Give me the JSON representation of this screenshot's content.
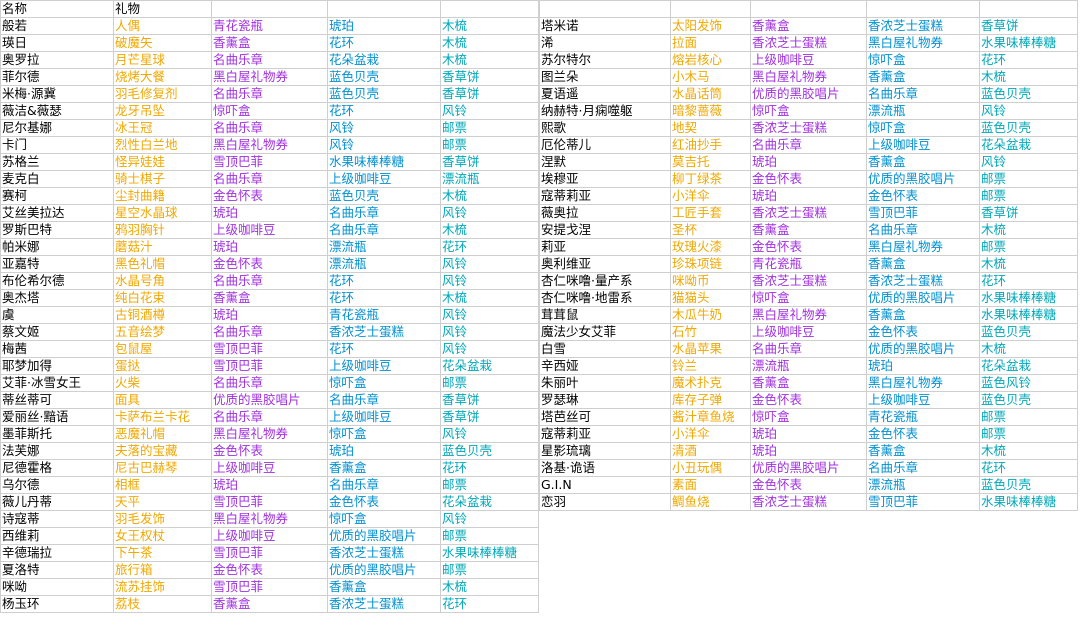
{
  "header": {
    "name": "名称",
    "gift": "礼物"
  },
  "left_rows": [
    [
      "般若",
      "人偶",
      "青花瓷瓶",
      "琥珀",
      "木梳"
    ],
    [
      "瑛日",
      "破魔矢",
      "香薰盒",
      "花环",
      "木梳"
    ],
    [
      "奥罗拉",
      "月芒星球",
      "名曲乐章",
      "花朵盆栽",
      "木梳"
    ],
    [
      "菲尔德",
      "烧烤大餐",
      "黑白屋礼物券",
      "蓝色贝壳",
      "香草饼"
    ],
    [
      "米梅·源冀",
      "羽毛修复剂",
      "名曲乐章",
      "蓝色贝壳",
      "香草饼"
    ],
    [
      "薇洁&薇瑟",
      "龙牙吊坠",
      "惊吓盒",
      "花环",
      "风铃"
    ],
    [
      "尼尔基娜",
      "冰王冠",
      "名曲乐章",
      "风铃",
      "邮票"
    ],
    [
      "卡门",
      "烈性白兰地",
      "黑白屋礼物券",
      "风铃",
      "邮票"
    ],
    [
      "苏格兰",
      "怪异娃娃",
      "雪顶巴菲",
      "水果味棒棒糖",
      "香草饼"
    ],
    [
      "麦克白",
      "骑士棋子",
      "名曲乐章",
      "上级咖啡豆",
      "漂流瓶"
    ],
    [
      "赛柯",
      "尘封曲籍",
      "金色怀表",
      "蓝色贝壳",
      "木梳"
    ],
    [
      "艾丝美拉达",
      "星空水晶球",
      "琥珀",
      "名曲乐章",
      "风铃"
    ],
    [
      "罗斯巴特",
      "鸦羽胸针",
      "上级咖啡豆",
      "名曲乐章",
      "木梳"
    ],
    [
      "帕米娜",
      "蘑菇汁",
      "琥珀",
      "漂流瓶",
      "花环"
    ],
    [
      "亚嘉特",
      "黑色礼帽",
      "金色怀表",
      "漂流瓶",
      "风铃"
    ],
    [
      "布伦希尔德",
      "水晶号角",
      "名曲乐章",
      "花环",
      "风铃"
    ],
    [
      "奥杰塔",
      "纯白花束",
      "香薰盒",
      "花环",
      "木梳"
    ],
    [
      "虞",
      "古铜酒樽",
      "琥珀",
      "青花瓷瓶",
      "风铃"
    ],
    [
      "蔡文姬",
      "五音绘梦",
      "名曲乐章",
      "香浓芝士蛋糕",
      "风铃"
    ],
    [
      "梅茜",
      "包鼠屋",
      "雪顶巴菲",
      "花环",
      "风铃"
    ],
    [
      "耶梦加得",
      "蛋挞",
      "雪顶巴菲",
      "上级咖啡豆",
      "花朵盆栽"
    ],
    [
      "艾菲·冰雪女王",
      "火柴",
      "名曲乐章",
      "惊吓盒",
      "邮票"
    ],
    [
      "蒂丝蒂可",
      "面具",
      "优质的黑胶唱片",
      "名曲乐章",
      "香草饼"
    ],
    [
      "爱丽丝·黯语",
      "卡萨布兰卡花",
      "名曲乐章",
      "上级咖啡豆",
      "香草饼"
    ],
    [
      "墨菲斯托",
      "恶魔礼帽",
      "黑白屋礼物券",
      "惊吓盒",
      "风铃"
    ],
    [
      "法芙娜",
      "夫落的宝藏",
      "金色怀表",
      "琥珀",
      "蓝色贝壳"
    ],
    [
      "尼德霍格",
      "尼古巴赫琴",
      "上级咖啡豆",
      "香薰盒",
      "花环"
    ],
    [
      "乌尔德",
      "相框",
      "琥珀",
      "名曲乐章",
      "邮票"
    ],
    [
      "薇儿丹蒂",
      "天平",
      "雪顶巴菲",
      "金色怀表",
      "花朵盆栽"
    ],
    [
      "诗寇蒂",
      "羽毛发饰",
      "黑白屋礼物券",
      "惊吓盒",
      "风铃"
    ],
    [
      "西维莉",
      "女王权杖",
      "上级咖啡豆",
      "优质的黑胶唱片",
      "邮票"
    ],
    [
      "辛德瑞拉",
      "下午茶",
      "雪顶巴菲",
      "香浓芝士蛋糕",
      "水果味棒棒糖"
    ],
    [
      "夏洛特",
      "旅行箱",
      "金色怀表",
      "优质的黑胶唱片",
      "邮票"
    ],
    [
      "咪呦",
      "流苏挂饰",
      "雪顶巴菲",
      "香薰盒",
      "木梳"
    ],
    [
      "杨玉环",
      "荔枝",
      "香薰盒",
      "香浓芝士蛋糕",
      "花环"
    ]
  ],
  "right_rows": [
    [
      "塔米诺",
      "太阳发饰",
      "香薰盒",
      "香浓芝士蛋糕",
      "香草饼"
    ],
    [
      "浠",
      "拉面",
      "香浓芝士蛋糕",
      "黑白屋礼物券",
      "水果味棒棒糖"
    ],
    [
      "苏尔特尔",
      "熔岩核心",
      "上级咖啡豆",
      "惊吓盒",
      "花环"
    ],
    [
      "图兰朵",
      "小木马",
      "黑白屋礼物券",
      "香薰盒",
      "木梳"
    ],
    [
      "夏语遥",
      "水晶话筒",
      "优质的黑胶唱片",
      "名曲乐章",
      "蓝色贝壳"
    ],
    [
      "纳赫特·月痫噬躯",
      "暗黎蔷薇",
      "惊吓盒",
      "漂流瓶",
      "风铃"
    ],
    [
      "熙歌",
      "地契",
      "香浓芝士蛋糕",
      "惊吓盒",
      "蓝色贝壳"
    ],
    [
      "厄伦蒂儿",
      "红油抄手",
      "名曲乐章",
      "上级咖啡豆",
      "花朵盆栽"
    ],
    [
      "涅默",
      "莫吉托",
      "琥珀",
      "香薰盒",
      "风铃"
    ],
    [
      "埃穆亚",
      "柳丁绿茶",
      "金色怀表",
      "优质的黑胶唱片",
      "邮票"
    ],
    [
      "寇蒂莉亚",
      "小洋伞",
      "琥珀",
      "金色怀表",
      "邮票"
    ],
    [
      "薇奥拉",
      "工匠手套",
      "香浓芝士蛋糕",
      "雪顶巴菲",
      "香草饼"
    ],
    [
      "安提戈涅",
      "圣杯",
      "香薰盒",
      "名曲乐章",
      "木梳"
    ],
    [
      "莉亚",
      "玫瑰火漆",
      "金色怀表",
      "黑白屋礼物券",
      "邮票"
    ],
    [
      "奥利维亚",
      "珍珠项链",
      "青花瓷瓶",
      "香薰盒",
      "木梳"
    ],
    [
      "杏仁咪噜·量产系",
      "咪呦币",
      "香浓芝士蛋糕",
      "香浓芝士蛋糕",
      "花环"
    ],
    [
      "杏仁咪噜·地雷系",
      "猫猫头",
      "惊吓盒",
      "优质的黑胶唱片",
      "水果味棒棒糖"
    ],
    [
      "茸茸鼠",
      "木瓜牛奶",
      "黑白屋礼物券",
      "香薰盒",
      "水果味棒棒糖"
    ],
    [
      "魔法少女艾菲",
      "石竹",
      "上级咖啡豆",
      "金色怀表",
      "蓝色贝壳"
    ],
    [
      "白雪",
      "水晶苹果",
      "名曲乐章",
      "优质的黑胶唱片",
      "木梳"
    ],
    [
      "辛西娅",
      "铃兰",
      "漂流瓶",
      "琥珀",
      "花朵盆栽"
    ],
    [
      "朱丽叶",
      "魔术扑克",
      "香薰盒",
      "黑白屋礼物券",
      "蓝色风铃"
    ],
    [
      "罗瑟琳",
      "库存子弹",
      "金色怀表",
      "上级咖啡豆",
      "蓝色贝壳"
    ],
    [
      "塔芭丝可",
      "酱汁章鱼烧",
      "惊吓盒",
      "青花瓷瓶",
      "邮票"
    ],
    [
      "寇蒂莉亚",
      "小洋伞",
      "琥珀",
      "金色怀表",
      "邮票"
    ],
    [
      "星影琉璃",
      "清酒",
      "琥珀",
      "香薰盒",
      "木梳"
    ],
    [
      "洛基·诡语",
      "小丑玩偶",
      "优质的黑胶唱片",
      "名曲乐章",
      "花环"
    ],
    [
      "G.I.N",
      "素面",
      "金色怀表",
      "漂流瓶",
      "蓝色贝壳"
    ],
    [
      "恋羽",
      "鲷鱼烧",
      "香浓芝士蛋糕",
      "雪顶巴菲",
      "水果味棒棒糖"
    ]
  ]
}
